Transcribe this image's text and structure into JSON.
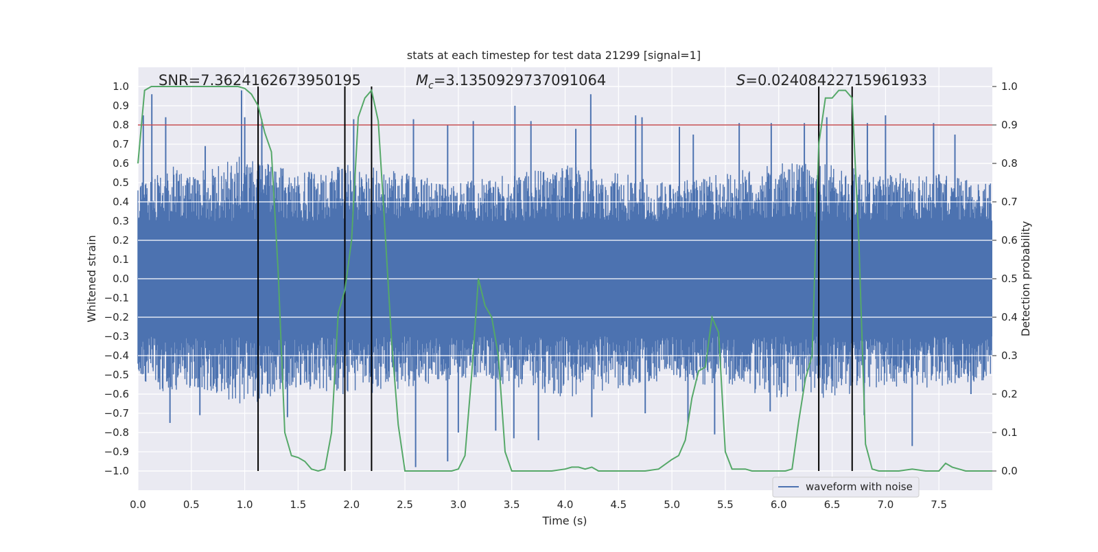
{
  "chart_data": {
    "type": "line",
    "title": "stats at each timestep for test data 21299 [signal=1]",
    "xlabel": "Time (s)",
    "ylabel": "Whitened strain",
    "y2label": "Detection probability",
    "xlim": [
      0,
      8
    ],
    "ylim": [
      -1.1,
      1.1
    ],
    "y2lim": [
      -0.05,
      1.05
    ],
    "x_ticks": [
      "0.0",
      "0.5",
      "1.0",
      "1.5",
      "2.0",
      "2.5",
      "3.0",
      "3.5",
      "4.0",
      "4.5",
      "5.0",
      "5.5",
      "6.0",
      "6.5",
      "7.0",
      "7.5"
    ],
    "y_ticks": [
      "1.0",
      "0.9",
      "0.8",
      "0.7",
      "0.6",
      "0.5",
      "0.4",
      "0.3",
      "0.2",
      "0.1",
      "0.0",
      "−0.1",
      "−0.2",
      "−0.3",
      "−0.4",
      "−0.5",
      "−0.6",
      "−0.7",
      "−0.8",
      "−0.9",
      "−1.0"
    ],
    "y2_ticks": [
      "1.0",
      "0.9",
      "0.8",
      "0.7",
      "0.6",
      "0.5",
      "0.4",
      "0.3",
      "0.2",
      "0.1",
      "0.0"
    ],
    "grid": true,
    "legend_position": "lower-right",
    "annotations": {
      "snr": "SNR=7.3624162673950195",
      "mc": "=3.1350929737091064",
      "mc_symbol": "M",
      "mc_sub": "c",
      "s": "=0.02408422715961933",
      "s_symbol": "S"
    },
    "threshold": {
      "value": 0.9,
      "color": "#c44e52"
    },
    "vlines": [
      1.125,
      1.9375,
      2.1875,
      6.375,
      6.6875
    ],
    "series": [
      {
        "name": "waveform with noise",
        "axis": "left",
        "color": "#4c72b0",
        "kind": "noise",
        "upper_envelope": [
          [
            0,
            0.5
          ],
          [
            0.25,
            0.6
          ],
          [
            0.5,
            0.55
          ],
          [
            1.0,
            0.65
          ],
          [
            1.5,
            0.55
          ],
          [
            2.0,
            0.6
          ],
          [
            2.5,
            0.55
          ],
          [
            3.0,
            0.5
          ],
          [
            3.5,
            0.55
          ],
          [
            4.0,
            0.6
          ],
          [
            4.5,
            0.55
          ],
          [
            5.0,
            0.5
          ],
          [
            5.5,
            0.55
          ],
          [
            6.0,
            0.6
          ],
          [
            6.5,
            0.6
          ],
          [
            7.0,
            0.55
          ],
          [
            7.5,
            0.55
          ],
          [
            8.0,
            0.5
          ]
        ],
        "spikes_up": [
          [
            0.05,
            0.85
          ],
          [
            0.13,
            0.96
          ],
          [
            0.26,
            0.84
          ],
          [
            0.63,
            0.69
          ],
          [
            0.97,
            0.98
          ],
          [
            1.0,
            0.84
          ],
          [
            1.16,
            0.83
          ],
          [
            2.02,
            0.83
          ],
          [
            2.58,
            0.83
          ],
          [
            2.9,
            0.8
          ],
          [
            3.14,
            0.82
          ],
          [
            3.53,
            0.9
          ],
          [
            3.68,
            0.82
          ],
          [
            4.1,
            0.78
          ],
          [
            4.24,
            0.96
          ],
          [
            4.66,
            0.85
          ],
          [
            4.72,
            0.84
          ],
          [
            5.07,
            0.79
          ],
          [
            5.2,
            0.75
          ],
          [
            5.63,
            0.81
          ],
          [
            5.93,
            0.81
          ],
          [
            6.24,
            0.81
          ],
          [
            6.45,
            0.84
          ],
          [
            6.83,
            0.81
          ],
          [
            7.0,
            0.85
          ],
          [
            7.45,
            0.81
          ],
          [
            7.65,
            0.75
          ]
        ],
        "spikes_down": [
          [
            0.3,
            -0.75
          ],
          [
            0.58,
            -0.71
          ],
          [
            1.12,
            -0.64
          ],
          [
            1.4,
            -0.72
          ],
          [
            2.6,
            -0.98
          ],
          [
            2.9,
            -0.95
          ],
          [
            3.0,
            -0.8
          ],
          [
            3.35,
            -0.79
          ],
          [
            3.52,
            -0.83
          ],
          [
            3.75,
            -0.84
          ],
          [
            4.25,
            -0.72
          ],
          [
            4.75,
            -0.7
          ],
          [
            5.15,
            -0.75
          ],
          [
            5.4,
            -0.81
          ],
          [
            5.92,
            -0.69
          ],
          [
            6.8,
            -0.71
          ],
          [
            7.25,
            -0.87
          ],
          [
            7.8,
            -0.6
          ]
        ]
      },
      {
        "name": "",
        "axis": "right",
        "color": "#55a868",
        "kind": "line",
        "x": [
          0,
          0.0625,
          0.125,
          0.25,
          0.5,
          0.75,
          0.9375,
          1.0,
          1.0625,
          1.125,
          1.1875,
          1.25,
          1.3125,
          1.375,
          1.4375,
          1.5,
          1.5625,
          1.625,
          1.6875,
          1.75,
          1.8125,
          1.875,
          1.9375,
          2.0,
          2.0625,
          2.125,
          2.1875,
          2.25,
          2.3125,
          2.375,
          2.4375,
          2.5,
          2.625,
          2.75,
          2.875,
          2.9375,
          3.0,
          3.0625,
          3.125,
          3.1875,
          3.25,
          3.3125,
          3.375,
          3.4375,
          3.5,
          3.75,
          3.875,
          4.0,
          4.0625,
          4.125,
          4.1875,
          4.25,
          4.3125,
          4.5,
          4.75,
          4.875,
          5.0,
          5.0625,
          5.125,
          5.1875,
          5.25,
          5.3125,
          5.375,
          5.4375,
          5.5,
          5.5625,
          5.625,
          5.6875,
          5.75,
          5.875,
          6.0,
          6.0625,
          6.125,
          6.1875,
          6.25,
          6.3125,
          6.375,
          6.4375,
          6.5,
          6.5625,
          6.625,
          6.6875,
          6.75,
          6.8125,
          6.875,
          6.9375,
          7.0,
          7.125,
          7.25,
          7.375,
          7.5,
          7.5625,
          7.625,
          7.6875,
          7.75,
          7.875,
          8.0
        ],
        "y": [
          0.8,
          0.99,
          1.0,
          1.0,
          1.0,
          1.0,
          1.0,
          0.995,
          0.98,
          0.95,
          0.88,
          0.83,
          0.52,
          0.1,
          0.04,
          0.035,
          0.025,
          0.005,
          0.0,
          0.005,
          0.1,
          0.41,
          0.47,
          0.6,
          0.92,
          0.97,
          0.99,
          0.91,
          0.63,
          0.34,
          0.12,
          0.0,
          0.0,
          0.0,
          0.0,
          0.0,
          0.005,
          0.04,
          0.25,
          0.5,
          0.43,
          0.4,
          0.3,
          0.05,
          0.0,
          0.0,
          0.0,
          0.005,
          0.01,
          0.01,
          0.005,
          0.01,
          0.0,
          0.0,
          0.0,
          0.005,
          0.03,
          0.04,
          0.08,
          0.19,
          0.26,
          0.27,
          0.4,
          0.36,
          0.05,
          0.005,
          0.005,
          0.005,
          0.0,
          0.0,
          0.0,
          0.0,
          0.005,
          0.13,
          0.24,
          0.3,
          0.85,
          0.97,
          0.97,
          0.99,
          0.99,
          0.97,
          0.6,
          0.07,
          0.005,
          0.0,
          0.0,
          0.0,
          0.005,
          0.0,
          0.0,
          0.02,
          0.01,
          0.005,
          0.0,
          0.0,
          0.0
        ]
      }
    ]
  }
}
